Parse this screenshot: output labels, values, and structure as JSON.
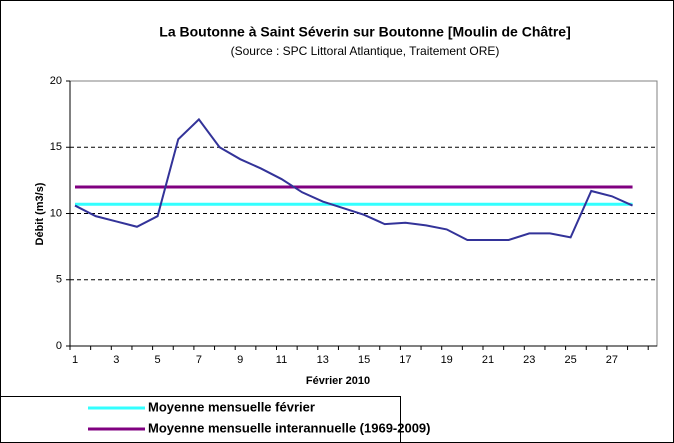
{
  "chart_data": {
    "type": "line",
    "title": "La Boutonne à Saint Séverin sur Boutonne [Moulin de Châtre]",
    "subtitle": "(Source : SPC Littoral Atlantique, Traitement ORE)",
    "x_label": "Février 2010",
    "y_label": "Débit (m3/s)",
    "categories": [
      "1",
      null,
      "3",
      null,
      "5",
      null,
      "7",
      null,
      "9",
      null,
      "11",
      null,
      "13",
      null,
      "15",
      null,
      "17",
      null,
      "19",
      null,
      "21",
      null,
      "23",
      null,
      "25",
      null,
      "27",
      null
    ],
    "series": [
      {
        "color": "#333399",
        "values": [
          10.6,
          9.8,
          9.4,
          9.0,
          9.8,
          15.6,
          17.1,
          15.0,
          14.1,
          13.4,
          12.6,
          11.6,
          10.9,
          10.4,
          9.9,
          9.2,
          9.3,
          9.1,
          8.8,
          8.0,
          8.0,
          8.0,
          8.5,
          8.5,
          8.2,
          11.7,
          11.3,
          10.6
        ]
      }
    ],
    "reference_lines": [
      {
        "name": "Moyenne mensuelle février",
        "color": "#33ffff",
        "value": 10.7
      },
      {
        "name": "Moyenne mensuelle interannuelle (1969-2009)",
        "color": "#800080",
        "value": 12.0
      }
    ],
    "ylim": [
      0,
      20
    ],
    "yticks": [
      0,
      5,
      10,
      15,
      20
    ],
    "grid": true
  }
}
